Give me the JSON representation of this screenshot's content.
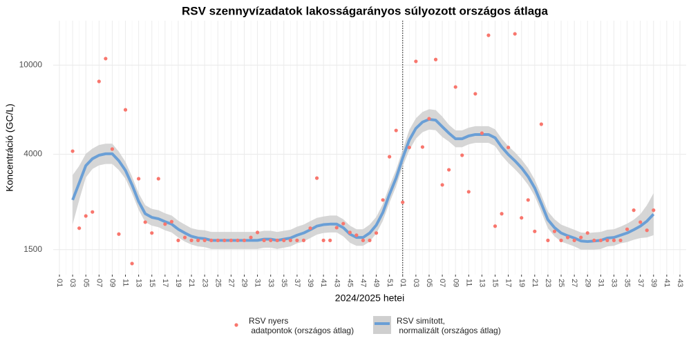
{
  "chart_data": {
    "type": "line",
    "title": "RSV szennyvízadatok lakosságarányos súlyozott országos átlaga",
    "x_label": "2024/2025 hetei",
    "y_label": "Koncentráció (GC/L)",
    "y_log": true,
    "grid": true,
    "legend_position": "bottom",
    "ylim": [
      1160,
      15800
    ],
    "yticks": [
      1500,
      4000,
      10000
    ],
    "categories": [
      "01",
      null,
      "03",
      null,
      "05",
      null,
      "07",
      null,
      "09",
      null,
      "11",
      null,
      "13",
      null,
      "15",
      null,
      "17",
      null,
      "19",
      null,
      "21",
      null,
      "23",
      null,
      "25",
      null,
      "27",
      null,
      "29",
      null,
      "31",
      null,
      "33",
      null,
      "35",
      null,
      "37",
      null,
      "39",
      null,
      "41",
      null,
      "43",
      null,
      "45",
      null,
      "47",
      null,
      "49",
      null,
      "51",
      null,
      "01",
      null,
      "03",
      null,
      "05",
      null,
      "07",
      null,
      "09",
      null,
      "11",
      null,
      "13",
      null,
      "15",
      null,
      "17",
      null,
      "19",
      null,
      "21",
      null,
      "23",
      null,
      "25",
      null,
      "27",
      null,
      "29",
      null,
      "31",
      null,
      "33",
      null,
      "35",
      null,
      "37",
      null,
      "39",
      null,
      "41",
      null,
      "43"
    ],
    "series": [
      {
        "name": "RSV nyers\n adatpontok (országos átlag)",
        "style": "points",
        "color": "#f8766d",
        "values": [
          null,
          null,
          4130,
          1870,
          2120,
          2210,
          8460,
          10700,
          4220,
          1760,
          6320,
          1300,
          3110,
          1990,
          1780,
          3110,
          1950,
          2000,
          1650,
          1700,
          1650,
          1650,
          1650,
          1650,
          1650,
          1650,
          1650,
          1650,
          1650,
          1700,
          1790,
          1650,
          1650,
          1650,
          1650,
          1650,
          1650,
          1650,
          1870,
          3130,
          1650,
          1650,
          1880,
          1960,
          1790,
          1740,
          1650,
          1650,
          1780,
          2500,
          3900,
          5110,
          2440,
          4290,
          10400,
          4310,
          5770,
          10600,
          2920,
          3410,
          7990,
          3960,
          2720,
          7450,
          4970,
          13600,
          1910,
          2170,
          4290,
          13800,
          2080,
          2500,
          1810,
          5450,
          1650,
          1810,
          1650,
          1700,
          1650,
          1700,
          1780,
          1650,
          1650,
          1650,
          1650,
          1650,
          1850,
          2250,
          1990,
          1830,
          2250,
          null,
          null,
          null,
          null
        ]
      },
      {
        "name": "RSV simított,\n normalizált (országos átlag)",
        "style": "smooth",
        "color": "#6a9fd6",
        "band_color": "#cfcfcf",
        "values": [
          null,
          null,
          2500,
          2980,
          3560,
          3820,
          3960,
          4020,
          4020,
          3740,
          3390,
          2920,
          2460,
          2170,
          2090,
          2060,
          2000,
          1950,
          1850,
          1780,
          1720,
          1690,
          1680,
          1650,
          1650,
          1650,
          1650,
          1650,
          1650,
          1650,
          1650,
          1670,
          1670,
          1650,
          1670,
          1690,
          1740,
          1780,
          1840,
          1910,
          1940,
          1950,
          1950,
          1880,
          1760,
          1700,
          1700,
          1780,
          1930,
          2200,
          2650,
          3130,
          3850,
          4630,
          5220,
          5570,
          5730,
          5680,
          5310,
          4970,
          4690,
          4690,
          4830,
          4900,
          4900,
          4900,
          4740,
          4310,
          3990,
          3740,
          3480,
          3180,
          2830,
          2410,
          2040,
          1880,
          1780,
          1730,
          1690,
          1640,
          1630,
          1640,
          1650,
          1690,
          1700,
          1740,
          1780,
          1840,
          1910,
          2010,
          2160,
          null,
          null,
          null,
          null
        ],
        "upper": [
          null,
          null,
          3230,
          3550,
          4020,
          4240,
          4400,
          4460,
          4460,
          4110,
          3700,
          3180,
          2680,
          2370,
          2280,
          2250,
          2180,
          2130,
          2020,
          1940,
          1870,
          1840,
          1830,
          1800,
          1800,
          1800,
          1800,
          1800,
          1800,
          1800,
          1800,
          1820,
          1820,
          1800,
          1820,
          1840,
          1900,
          1940,
          2010,
          2080,
          2110,
          2130,
          2130,
          2050,
          1920,
          1850,
          1850,
          1940,
          2100,
          2400,
          2890,
          3410,
          4200,
          5140,
          5790,
          6180,
          6360,
          6300,
          5890,
          5420,
          5110,
          5110,
          5260,
          5340,
          5340,
          5340,
          5170,
          4700,
          4350,
          4080,
          3790,
          3470,
          3080,
          2630,
          2220,
          2050,
          1940,
          1890,
          1840,
          1790,
          1780,
          1790,
          1800,
          1840,
          1850,
          1900,
          1960,
          2040,
          2160,
          2370,
          2680,
          null,
          null,
          null,
          null
        ],
        "lower": [
          null,
          null,
          1940,
          2500,
          3150,
          3440,
          3570,
          3620,
          3620,
          3400,
          3110,
          2680,
          2260,
          1990,
          1920,
          1890,
          1830,
          1790,
          1700,
          1630,
          1580,
          1550,
          1540,
          1510,
          1510,
          1510,
          1510,
          1510,
          1510,
          1510,
          1510,
          1530,
          1530,
          1510,
          1530,
          1550,
          1600,
          1630,
          1690,
          1750,
          1780,
          1790,
          1790,
          1720,
          1610,
          1560,
          1560,
          1630,
          1770,
          2020,
          2430,
          2870,
          3530,
          4170,
          4700,
          5020,
          5160,
          5120,
          4780,
          4560,
          4300,
          4300,
          4430,
          4500,
          4500,
          4500,
          4350,
          3950,
          3660,
          3430,
          3190,
          2920,
          2600,
          2210,
          1870,
          1720,
          1630,
          1590,
          1550,
          1500,
          1500,
          1500,
          1510,
          1550,
          1560,
          1600,
          1620,
          1660,
          1690,
          1700,
          1740,
          null,
          null,
          null,
          null
        ]
      }
    ]
  }
}
